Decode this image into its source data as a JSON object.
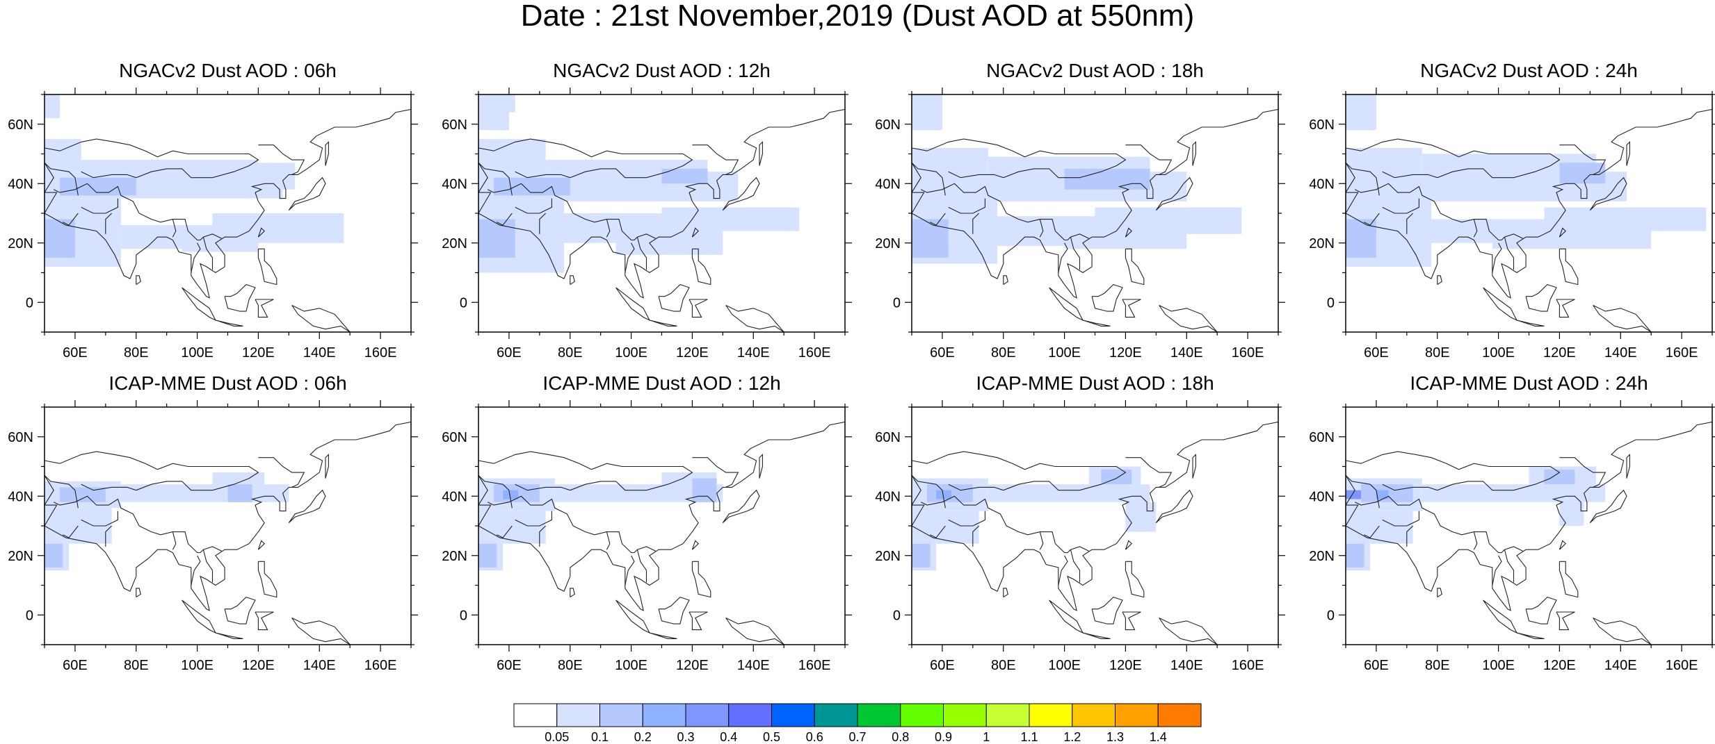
{
  "title": "Date : 21st November,2019 (Dust AOD at 550nm)",
  "map": {
    "lon_range": [
      50,
      170
    ],
    "lat_range": [
      -10,
      70
    ],
    "lon_ticks": [
      60,
      80,
      100,
      120,
      140,
      160
    ],
    "lon_tick_labels": [
      "60E",
      "80E",
      "100E",
      "120E",
      "140E",
      "160E"
    ],
    "lat_ticks": [
      0,
      20,
      40,
      60
    ],
    "lat_tick_labels": [
      "0",
      "20N",
      "40N",
      "60N"
    ]
  },
  "colorbar": {
    "levels": [
      "0.05",
      "0.1",
      "0.2",
      "0.3",
      "0.4",
      "0.5",
      "0.6",
      "0.7",
      "0.8",
      "0.9",
      "1",
      "1.1",
      "1.2",
      "1.3",
      "1.4"
    ],
    "colors": [
      "#ffffff",
      "#d6e2ff",
      "#b5c9ff",
      "#8eb2ff",
      "#7f96ff",
      "#6370ff",
      "#0063ff",
      "#009696",
      "#00c633",
      "#63ff00",
      "#96ff00",
      "#c6ff33",
      "#ffff00",
      "#ffc600",
      "#ffa000",
      "#ff7c00",
      "#ff1900"
    ]
  },
  "panels": [
    {
      "title": "NGACv2 Dust AOD : 06h",
      "regions": [
        {
          "lon": [
            50,
            55
          ],
          "lat": [
            62,
            70
          ],
          "level": 1
        },
        {
          "lon": [
            50,
            62
          ],
          "lat": [
            44,
            55
          ],
          "level": 1
        },
        {
          "lon": [
            50,
            128
          ],
          "lat": [
            35,
            44
          ],
          "level": 1
        },
        {
          "lon": [
            62,
            120
          ],
          "lat": [
            44,
            48
          ],
          "level": 1
        },
        {
          "lon": [
            120,
            132
          ],
          "lat": [
            38,
            47
          ],
          "level": 1
        },
        {
          "lon": [
            50,
            75
          ],
          "lat": [
            12,
            35
          ],
          "level": 1
        },
        {
          "lon": [
            75,
            105
          ],
          "lat": [
            18,
            26
          ],
          "level": 1
        },
        {
          "lon": [
            105,
            148
          ],
          "lat": [
            20,
            30
          ],
          "level": 1
        },
        {
          "lon": [
            95,
            120
          ],
          "lat": [
            17,
            22
          ],
          "level": 1
        },
        {
          "lon": [
            50,
            60
          ],
          "lat": [
            15,
            28
          ],
          "level": 2
        },
        {
          "lon": [
            55,
            80
          ],
          "lat": [
            36,
            42
          ],
          "level": 2
        }
      ]
    },
    {
      "title": "NGACv2 Dust AOD : 12h",
      "regions": [
        {
          "lon": [
            50,
            60
          ],
          "lat": [
            58,
            70
          ],
          "level": 1
        },
        {
          "lon": [
            60,
            62
          ],
          "lat": [
            64,
            70
          ],
          "level": 1
        },
        {
          "lon": [
            50,
            72
          ],
          "lat": [
            44,
            55
          ],
          "level": 1
        },
        {
          "lon": [
            50,
            135
          ],
          "lat": [
            34,
            44
          ],
          "level": 1
        },
        {
          "lon": [
            72,
            125
          ],
          "lat": [
            44,
            48
          ],
          "level": 1
        },
        {
          "lon": [
            50,
            78
          ],
          "lat": [
            10,
            34
          ],
          "level": 1
        },
        {
          "lon": [
            78,
            110
          ],
          "lat": [
            20,
            30
          ],
          "level": 1
        },
        {
          "lon": [
            110,
            155
          ],
          "lat": [
            24,
            32
          ],
          "level": 1
        },
        {
          "lon": [
            95,
            130
          ],
          "lat": [
            16,
            24
          ],
          "level": 1
        },
        {
          "lon": [
            50,
            62
          ],
          "lat": [
            15,
            28
          ],
          "level": 2
        },
        {
          "lon": [
            55,
            80
          ],
          "lat": [
            36,
            42
          ],
          "level": 2
        },
        {
          "lon": [
            110,
            125
          ],
          "lat": [
            40,
            45
          ],
          "level": 2
        }
      ]
    },
    {
      "title": "NGACv2 Dust AOD : 18h",
      "regions": [
        {
          "lon": [
            50,
            60
          ],
          "lat": [
            58,
            70
          ],
          "level": 1
        },
        {
          "lon": [
            50,
            75
          ],
          "lat": [
            44,
            52
          ],
          "level": 1
        },
        {
          "lon": [
            50,
            140
          ],
          "lat": [
            34,
            44
          ],
          "level": 1
        },
        {
          "lon": [
            75,
            128
          ],
          "lat": [
            44,
            49
          ],
          "level": 1
        },
        {
          "lon": [
            50,
            78
          ],
          "lat": [
            13,
            34
          ],
          "level": 1
        },
        {
          "lon": [
            78,
            110
          ],
          "lat": [
            19,
            29
          ],
          "level": 1
        },
        {
          "lon": [
            110,
            158
          ],
          "lat": [
            23,
            32
          ],
          "level": 1
        },
        {
          "lon": [
            100,
            140
          ],
          "lat": [
            18,
            24
          ],
          "level": 1
        },
        {
          "lon": [
            50,
            62
          ],
          "lat": [
            15,
            28
          ],
          "level": 2
        },
        {
          "lon": [
            100,
            128
          ],
          "lat": [
            38,
            45
          ],
          "level": 2
        }
      ]
    },
    {
      "title": "NGACv2 Dust AOD : 24h",
      "regions": [
        {
          "lon": [
            50,
            60
          ],
          "lat": [
            58,
            70
          ],
          "level": 1
        },
        {
          "lon": [
            50,
            75
          ],
          "lat": [
            44,
            52
          ],
          "level": 1
        },
        {
          "lon": [
            50,
            142
          ],
          "lat": [
            34,
            44
          ],
          "level": 1
        },
        {
          "lon": [
            75,
            132
          ],
          "lat": [
            44,
            50
          ],
          "level": 1
        },
        {
          "lon": [
            50,
            78
          ],
          "lat": [
            12,
            34
          ],
          "level": 1
        },
        {
          "lon": [
            78,
            115
          ],
          "lat": [
            20,
            28
          ],
          "level": 1
        },
        {
          "lon": [
            115,
            168
          ],
          "lat": [
            24,
            32
          ],
          "level": 1
        },
        {
          "lon": [
            98,
            150
          ],
          "lat": [
            18,
            25
          ],
          "level": 1
        },
        {
          "lon": [
            50,
            60
          ],
          "lat": [
            15,
            28
          ],
          "level": 2
        },
        {
          "lon": [
            120,
            135
          ],
          "lat": [
            40,
            47
          ],
          "level": 2
        }
      ]
    },
    {
      "title": "ICAP-MME Dust AOD : 06h",
      "regions": [
        {
          "lon": [
            50,
            75
          ],
          "lat": [
            36,
            45
          ],
          "level": 1
        },
        {
          "lon": [
            75,
            130
          ],
          "lat": [
            38,
            44
          ],
          "level": 1
        },
        {
          "lon": [
            105,
            122
          ],
          "lat": [
            44,
            48
          ],
          "level": 1
        },
        {
          "lon": [
            50,
            72
          ],
          "lat": [
            24,
            36
          ],
          "level": 1
        },
        {
          "lon": [
            50,
            58
          ],
          "lat": [
            15,
            24
          ],
          "level": 1
        },
        {
          "lon": [
            50,
            56
          ],
          "lat": [
            16,
            24
          ],
          "level": 2
        },
        {
          "lon": [
            55,
            70
          ],
          "lat": [
            38,
            43
          ],
          "level": 2
        },
        {
          "lon": [
            110,
            118
          ],
          "lat": [
            38,
            44
          ],
          "level": 2
        }
      ]
    },
    {
      "title": "ICAP-MME Dust AOD : 12h",
      "regions": [
        {
          "lon": [
            50,
            75
          ],
          "lat": [
            35,
            46
          ],
          "level": 1
        },
        {
          "lon": [
            75,
            130
          ],
          "lat": [
            38,
            44
          ],
          "level": 1
        },
        {
          "lon": [
            110,
            128
          ],
          "lat": [
            44,
            48
          ],
          "level": 1
        },
        {
          "lon": [
            50,
            72
          ],
          "lat": [
            24,
            35
          ],
          "level": 1
        },
        {
          "lon": [
            50,
            58
          ],
          "lat": [
            15,
            24
          ],
          "level": 1
        },
        {
          "lon": [
            50,
            56
          ],
          "lat": [
            16,
            24
          ],
          "level": 2
        },
        {
          "lon": [
            55,
            70
          ],
          "lat": [
            38,
            44
          ],
          "level": 2
        },
        {
          "lon": [
            120,
            128
          ],
          "lat": [
            38,
            46
          ],
          "level": 2
        },
        {
          "lon": [
            58,
            63
          ],
          "lat": [
            39,
            42
          ],
          "level": 3
        }
      ]
    },
    {
      "title": "ICAP-MME Dust AOD : 18h",
      "regions": [
        {
          "lon": [
            50,
            75
          ],
          "lat": [
            35,
            46
          ],
          "level": 1
        },
        {
          "lon": [
            75,
            128
          ],
          "lat": [
            38,
            44
          ],
          "level": 1
        },
        {
          "lon": [
            108,
            125
          ],
          "lat": [
            44,
            50
          ],
          "level": 1
        },
        {
          "lon": [
            120,
            130
          ],
          "lat": [
            28,
            38
          ],
          "level": 1
        },
        {
          "lon": [
            50,
            72
          ],
          "lat": [
            24,
            35
          ],
          "level": 1
        },
        {
          "lon": [
            50,
            58
          ],
          "lat": [
            15,
            24
          ],
          "level": 1
        },
        {
          "lon": [
            50,
            56
          ],
          "lat": [
            16,
            24
          ],
          "level": 2
        },
        {
          "lon": [
            55,
            70
          ],
          "lat": [
            38,
            44
          ],
          "level": 2
        },
        {
          "lon": [
            112,
            122
          ],
          "lat": [
            44,
            49
          ],
          "level": 2
        },
        {
          "lon": [
            58,
            63
          ],
          "lat": [
            39,
            42
          ],
          "level": 3
        }
      ]
    },
    {
      "title": "ICAP-MME Dust AOD : 24h",
      "regions": [
        {
          "lon": [
            50,
            75
          ],
          "lat": [
            35,
            46
          ],
          "level": 1
        },
        {
          "lon": [
            75,
            135
          ],
          "lat": [
            38,
            44
          ],
          "level": 1
        },
        {
          "lon": [
            110,
            132
          ],
          "lat": [
            44,
            50
          ],
          "level": 1
        },
        {
          "lon": [
            120,
            128
          ],
          "lat": [
            30,
            38
          ],
          "level": 1
        },
        {
          "lon": [
            50,
            72
          ],
          "lat": [
            24,
            35
          ],
          "level": 1
        },
        {
          "lon": [
            50,
            58
          ],
          "lat": [
            15,
            24
          ],
          "level": 1
        },
        {
          "lon": [
            50,
            56
          ],
          "lat": [
            16,
            24
          ],
          "level": 2
        },
        {
          "lon": [
            55,
            72
          ],
          "lat": [
            38,
            44
          ],
          "level": 2
        },
        {
          "lon": [
            115,
            125
          ],
          "lat": [
            44,
            49
          ],
          "level": 2
        },
        {
          "lon": [
            50,
            55
          ],
          "lat": [
            39,
            42
          ],
          "level": 4
        },
        {
          "lon": [
            60,
            64
          ],
          "lat": [
            39,
            42
          ],
          "level": 3
        }
      ]
    }
  ]
}
